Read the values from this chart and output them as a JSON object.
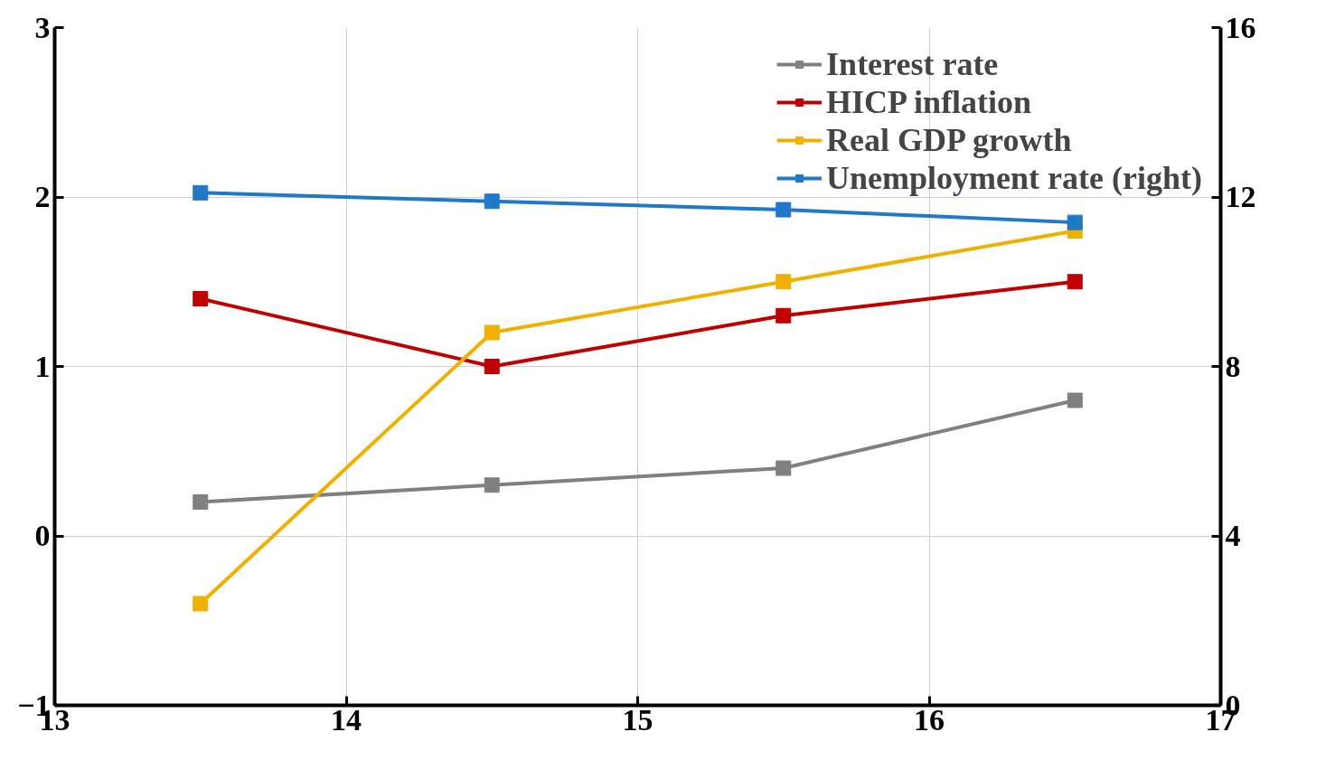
{
  "chart_data": {
    "type": "line",
    "x": [
      13.5,
      14.5,
      15.5,
      16.5
    ],
    "series": [
      {
        "name": "Interest rate",
        "color": "#808080",
        "values": [
          0.2,
          0.3,
          0.4,
          0.8
        ]
      },
      {
        "name": "HICP inflation",
        "color": "#c00000",
        "values": [
          1.4,
          1.0,
          1.3,
          1.5
        ]
      },
      {
        "name": "Real GDP growth",
        "color": "#f0b000",
        "values": [
          -0.4,
          1.2,
          1.5,
          1.8
        ]
      },
      {
        "name": "Unemployment rate (right)",
        "color": "#1f78c8",
        "values": [
          12.1,
          11.9,
          11.7,
          11.4
        ],
        "axis": "y2"
      }
    ],
    "xlim": [
      13,
      17
    ],
    "xticks": [
      13,
      14,
      15,
      16,
      17
    ],
    "ylim": [
      -1,
      3
    ],
    "yticks": [
      -1,
      0,
      1,
      2,
      3
    ],
    "y2lim": [
      0,
      16
    ],
    "y2ticks": [
      0,
      4,
      8,
      12,
      16
    ],
    "grid": true,
    "legend": "top right",
    "marker": "square",
    "line_style": "solid"
  }
}
